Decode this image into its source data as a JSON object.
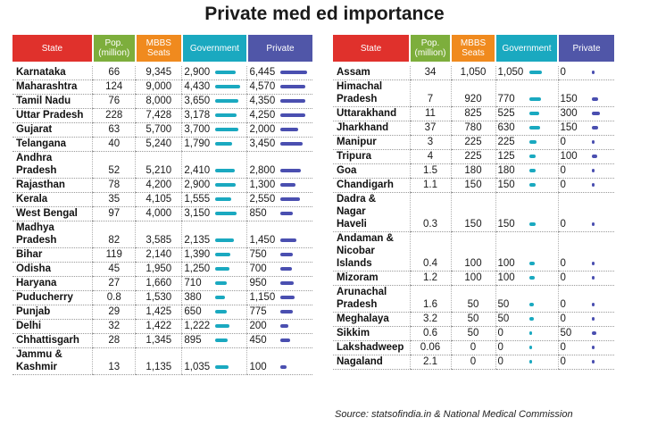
{
  "title": "Private med ed importance",
  "headers": {
    "state": "State",
    "pop_line1": "Pop.",
    "pop_line2": "(million)",
    "seats_line1": "MBBS",
    "seats_line2": "Seats",
    "government": "Government",
    "private": "Private"
  },
  "left_rows": [
    {
      "state": "Karnataka",
      "pop": "66",
      "seats": "9,345",
      "gov": "2,900",
      "pvt": "6,445"
    },
    {
      "state": "Maharashtra",
      "pop": "124",
      "seats": "9,000",
      "gov": "4,430",
      "pvt": "4,570"
    },
    {
      "state": "Tamil Nadu",
      "pop": "76",
      "seats": "8,000",
      "gov": "3,650",
      "pvt": "4,350"
    },
    {
      "state": "Uttar Pradesh",
      "pop": "228",
      "seats": "7,428",
      "gov": "3,178",
      "pvt": "4,250"
    },
    {
      "state": "Gujarat",
      "pop": "63",
      "seats": "5,700",
      "gov": "3,700",
      "pvt": "2,000"
    },
    {
      "state": "Telangana",
      "pop": "40",
      "seats": "5,240",
      "gov": "1,790",
      "pvt": "3,450"
    },
    {
      "state": "Andhra Pradesh",
      "state_l1": "Andhra",
      "state_l2": "Pradesh",
      "pop": "52",
      "seats": "5,210",
      "gov": "2,410",
      "pvt": "2,800"
    },
    {
      "state": "Rajasthan",
      "pop": "78",
      "seats": "4,200",
      "gov": "2,900",
      "pvt": "1,300"
    },
    {
      "state": "Kerala",
      "pop": "35",
      "seats": "4,105",
      "gov": "1,555",
      "pvt": "2,550"
    },
    {
      "state": "West Bengal",
      "pop": "97",
      "seats": "4,000",
      "gov": "3,150",
      "pvt": "850"
    },
    {
      "state": "Madhya Pradesh",
      "state_l1": "Madhya",
      "state_l2": "Pradesh",
      "pop": "82",
      "seats": "3,585",
      "gov": "2,135",
      "pvt": "1,450"
    },
    {
      "state": "Bihar",
      "pop": "119",
      "seats": "2,140",
      "gov": "1,390",
      "pvt": "750"
    },
    {
      "state": "Odisha",
      "pop": "45",
      "seats": "1,950",
      "gov": "1,250",
      "pvt": "700"
    },
    {
      "state": "Haryana",
      "pop": "27",
      "seats": "1,660",
      "gov": "710",
      "pvt": "950"
    },
    {
      "state": "Puducherry",
      "pop": "0.8",
      "seats": "1,530",
      "gov": "380",
      "pvt": "1,150"
    },
    {
      "state": "Punjab",
      "pop": "29",
      "seats": "1,425",
      "gov": "650",
      "pvt": "775"
    },
    {
      "state": "Delhi",
      "pop": "32",
      "seats": "1,422",
      "gov": "1,222",
      "pvt": "200"
    },
    {
      "state": "Chhattisgarh",
      "pop": "28",
      "seats": "1,345",
      "gov": "895",
      "pvt": "450"
    },
    {
      "state": "Jammu & Kashmir",
      "state_l1": "Jammu &",
      "state_l2": "Kashmir",
      "pop": "13",
      "seats": "1,135",
      "gov": "1,035",
      "pvt": "100"
    }
  ],
  "right_rows": [
    {
      "state": "Assam",
      "pop": "34",
      "seats": "1,050",
      "gov": "1,050",
      "pvt": "0"
    },
    {
      "state": "Himachal Pradesh",
      "state_l1": "Himachal",
      "state_l2": "Pradesh",
      "pop": "7",
      "seats": "920",
      "gov": "770",
      "pvt": "150"
    },
    {
      "state": "Uttarakhand",
      "pop": "11",
      "seats": "825",
      "gov": "525",
      "pvt": "300"
    },
    {
      "state": "Jharkhand",
      "pop": "37",
      "seats": "780",
      "gov": "630",
      "pvt": "150"
    },
    {
      "state": "Manipur",
      "pop": "3",
      "seats": "225",
      "gov": "225",
      "pvt": "0"
    },
    {
      "state": "Tripura",
      "pop": "4",
      "seats": "225",
      "gov": "125",
      "pvt": "100"
    },
    {
      "state": "Goa",
      "pop": "1.5",
      "seats": "180",
      "gov": "180",
      "pvt": "0"
    },
    {
      "state": "Chandigarh",
      "pop": "1.1",
      "seats": "150",
      "gov": "150",
      "pvt": "0"
    },
    {
      "state": "Dadra & Nagar Haveli",
      "state_l1": "Dadra & Nagar",
      "state_l2": "Haveli",
      "pop": "0.3",
      "seats": "150",
      "gov": "150",
      "pvt": "0"
    },
    {
      "state": "Andaman & Nicobar Islands",
      "state_l1": "Andaman &",
      "state_l2": "Nicobar Islands",
      "pop": "0.4",
      "seats": "100",
      "gov": "100",
      "pvt": "0"
    },
    {
      "state": "Mizoram",
      "pop": "1.2",
      "seats": "100",
      "gov": "100",
      "pvt": "0"
    },
    {
      "state": "Arunachal Pradesh",
      "state_l1": "Arunachal",
      "state_l2": "Pradesh",
      "pop": "1.6",
      "seats": "50",
      "gov": "50",
      "pvt": "0"
    },
    {
      "state": "Meghalaya",
      "pop": "3.2",
      "seats": "50",
      "gov": "50",
      "pvt": "0"
    },
    {
      "state": "Sikkim",
      "pop": "0.6",
      "seats": "50",
      "gov": "0",
      "pvt": "50"
    },
    {
      "state": "Lakshadweep",
      "pop": "0.06",
      "seats": "0",
      "gov": "0",
      "pvt": "0"
    },
    {
      "state": "Nagaland",
      "pop": "2.1",
      "seats": "0",
      "gov": "0",
      "pvt": "0"
    }
  ],
  "source": "Source: statsofindia.in & National Medical Commission",
  "colors": {
    "government": "#1aa9c0",
    "private": "#4a4fb0"
  }
}
